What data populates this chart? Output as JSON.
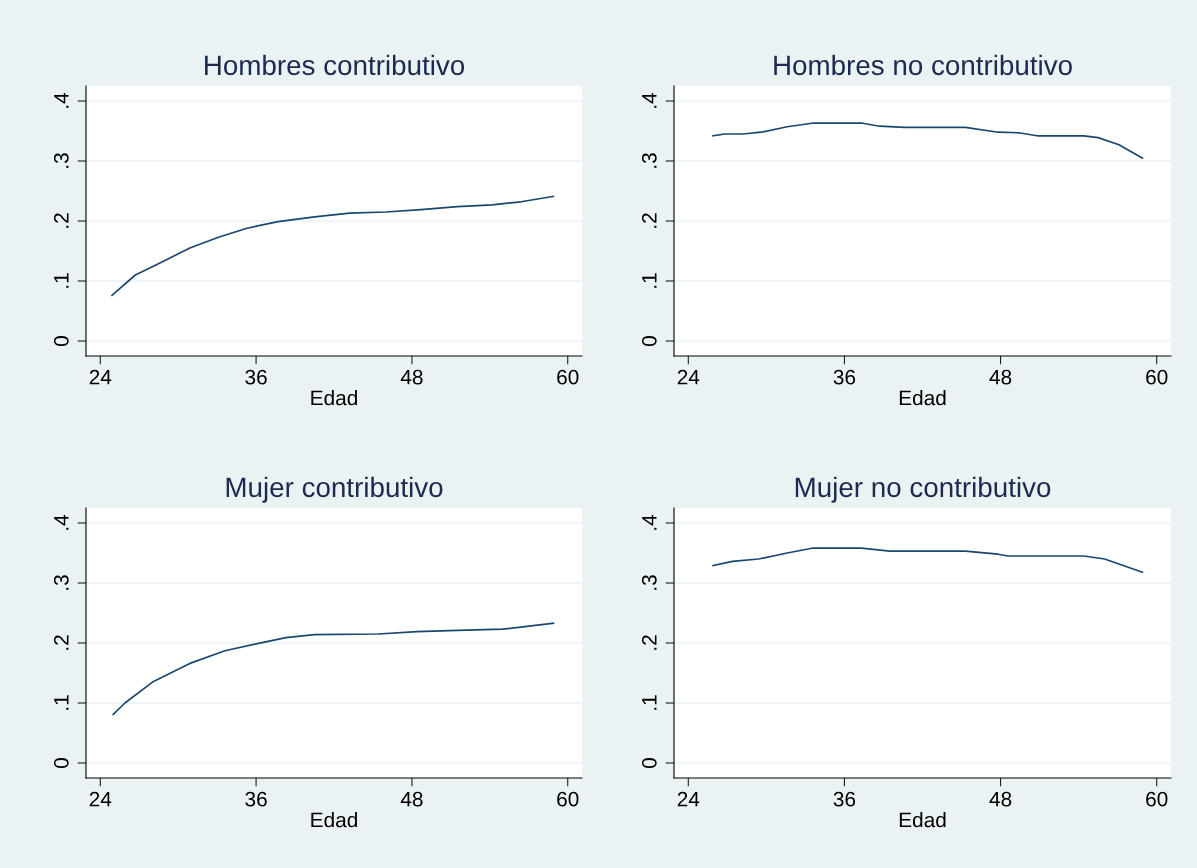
{
  "chart_data": [
    {
      "type": "line",
      "title": "Hombres contributivo",
      "xlabel": "Edad",
      "color": "#1a476f",
      "grid": "y",
      "xlim": [
        22.9,
        61.1
      ],
      "ylim": [
        -0.025,
        0.425
      ],
      "xticks": [
        24,
        36,
        48,
        60
      ],
      "yticks": [
        0,
        {
          "value": 0.1,
          "label": ".1"
        },
        {
          "value": 0.2,
          "label": ".2"
        },
        {
          "value": 0.3,
          "label": ".3"
        },
        {
          "value": 0.4,
          "label": ".4"
        }
      ],
      "x": [
        24.9,
        26.7,
        28.4,
        30.9,
        33.1,
        35.3,
        37.7,
        40.5,
        43.2,
        46.0,
        48.7,
        51.5,
        54.2,
        56.4,
        58.9
      ],
      "values": [
        0.076,
        0.11,
        0.128,
        0.155,
        0.173,
        0.188,
        0.199,
        0.207,
        0.213,
        0.215,
        0.219,
        0.224,
        0.227,
        0.232,
        0.241
      ]
    },
    {
      "type": "line",
      "title": "Hombres no contributivo",
      "xlabel": "Edad",
      "color": "#1a476f",
      "grid": "y",
      "xlim": [
        22.9,
        61.1
      ],
      "ylim": [
        -0.025,
        0.425
      ],
      "xticks": [
        24,
        36,
        48,
        60
      ],
      "yticks": [
        0,
        {
          "value": 0.1,
          "label": ".1"
        },
        {
          "value": 0.2,
          "label": ".2"
        },
        {
          "value": 0.3,
          "label": ".3"
        },
        {
          "value": 0.4,
          "label": ".4"
        }
      ],
      "x": [
        25.9,
        26.8,
        28.2,
        29.6,
        31.6,
        33.5,
        37.4,
        38.7,
        40.6,
        45.3,
        47.8,
        49.4,
        50.8,
        54.4,
        55.5,
        57.1,
        58.9
      ],
      "values": [
        0.342,
        0.345,
        0.345,
        0.348,
        0.357,
        0.363,
        0.363,
        0.358,
        0.356,
        0.356,
        0.348,
        0.347,
        0.342,
        0.342,
        0.339,
        0.327,
        0.305
      ]
    },
    {
      "type": "line",
      "title": "Mujer contributivo",
      "xlabel": "Edad",
      "color": "#1a476f",
      "grid": "y",
      "xlim": [
        22.9,
        61.1
      ],
      "ylim": [
        -0.025,
        0.425
      ],
      "xticks": [
        24,
        36,
        48,
        60
      ],
      "yticks": [
        0,
        {
          "value": 0.1,
          "label": ".1"
        },
        {
          "value": 0.2,
          "label": ".2"
        },
        {
          "value": 0.3,
          "label": ".3"
        },
        {
          "value": 0.4,
          "label": ".4"
        }
      ],
      "x": [
        25.0,
        25.9,
        28.1,
        30.9,
        33.6,
        36.1,
        38.3,
        40.5,
        45.4,
        48.4,
        51.5,
        55.0,
        58.9
      ],
      "values": [
        0.081,
        0.1,
        0.136,
        0.166,
        0.187,
        0.199,
        0.209,
        0.214,
        0.215,
        0.219,
        0.221,
        0.223,
        0.233
      ]
    },
    {
      "type": "line",
      "title": "Mujer no contributivo",
      "xlabel": "Edad",
      "color": "#1a476f",
      "grid": "y",
      "xlim": [
        22.9,
        61.1
      ],
      "ylim": [
        -0.025,
        0.425
      ],
      "xticks": [
        24,
        36,
        48,
        60
      ],
      "yticks": [
        0,
        {
          "value": 0.1,
          "label": ".1"
        },
        {
          "value": 0.2,
          "label": ".2"
        },
        {
          "value": 0.3,
          "label": ".3"
        },
        {
          "value": 0.4,
          "label": ".4"
        }
      ],
      "x": [
        25.9,
        27.4,
        29.4,
        31.6,
        33.5,
        37.3,
        39.5,
        45.3,
        47.8,
        48.6,
        54.4,
        56.0,
        58.9
      ],
      "values": [
        0.329,
        0.336,
        0.34,
        0.35,
        0.358,
        0.358,
        0.353,
        0.353,
        0.348,
        0.345,
        0.345,
        0.34,
        0.318
      ]
    }
  ]
}
